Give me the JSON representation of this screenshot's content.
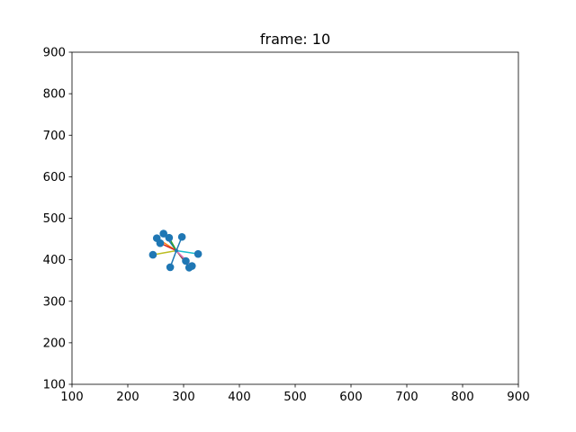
{
  "chart_data": {
    "type": "scatter",
    "title": "frame: 10",
    "xlabel": "",
    "ylabel": "",
    "xlim": [
      100,
      900
    ],
    "ylim": [
      100,
      900
    ],
    "xticks": [
      "100",
      "200",
      "300",
      "400",
      "500",
      "600",
      "700",
      "800",
      "900"
    ],
    "yticks": [
      "100",
      "200",
      "300",
      "400",
      "500",
      "600",
      "700",
      "800",
      "900"
    ],
    "grid": false,
    "marker_color": "#1f77b4",
    "center": [
      287,
      422
    ],
    "points": [
      {
        "x": 264,
        "y": 463
      },
      {
        "x": 252,
        "y": 452
      },
      {
        "x": 274,
        "y": 453
      },
      {
        "x": 258,
        "y": 440
      },
      {
        "x": 297,
        "y": 455
      },
      {
        "x": 245,
        "y": 412
      },
      {
        "x": 326,
        "y": 414
      },
      {
        "x": 276,
        "y": 382
      },
      {
        "x": 304,
        "y": 397
      },
      {
        "x": 310,
        "y": 381
      },
      {
        "x": 315,
        "y": 385
      }
    ],
    "segments": [
      {
        "from": [
          287,
          422
        ],
        "to": [
          264,
          463
        ],
        "color": "#1f77b4"
      },
      {
        "from": [
          287,
          422
        ],
        "to": [
          252,
          452
        ],
        "color": "#ff7f0e"
      },
      {
        "from": [
          287,
          422
        ],
        "to": [
          274,
          453
        ],
        "color": "#2ca02c"
      },
      {
        "from": [
          287,
          422
        ],
        "to": [
          258,
          440
        ],
        "color": "#d62728"
      },
      {
        "from": [
          287,
          422
        ],
        "to": [
          297,
          455
        ],
        "color": "#1f77b4"
      },
      {
        "from": [
          287,
          422
        ],
        "to": [
          245,
          412
        ],
        "color": "#bcbd22"
      },
      {
        "from": [
          287,
          422
        ],
        "to": [
          326,
          414
        ],
        "color": "#17becf"
      },
      {
        "from": [
          287,
          422
        ],
        "to": [
          276,
          382
        ],
        "color": "#1f77b4"
      },
      {
        "from": [
          287,
          422
        ],
        "to": [
          304,
          397
        ],
        "color": "#9467bd"
      },
      {
        "from": [
          287,
          422
        ],
        "to": [
          310,
          381
        ],
        "color": "#8c564b"
      },
      {
        "from": [
          287,
          422
        ],
        "to": [
          315,
          385
        ],
        "color": "#e377c2"
      },
      {
        "from": [
          264,
          463
        ],
        "to": [
          274,
          453
        ],
        "color": "#ff7f0e"
      }
    ]
  }
}
